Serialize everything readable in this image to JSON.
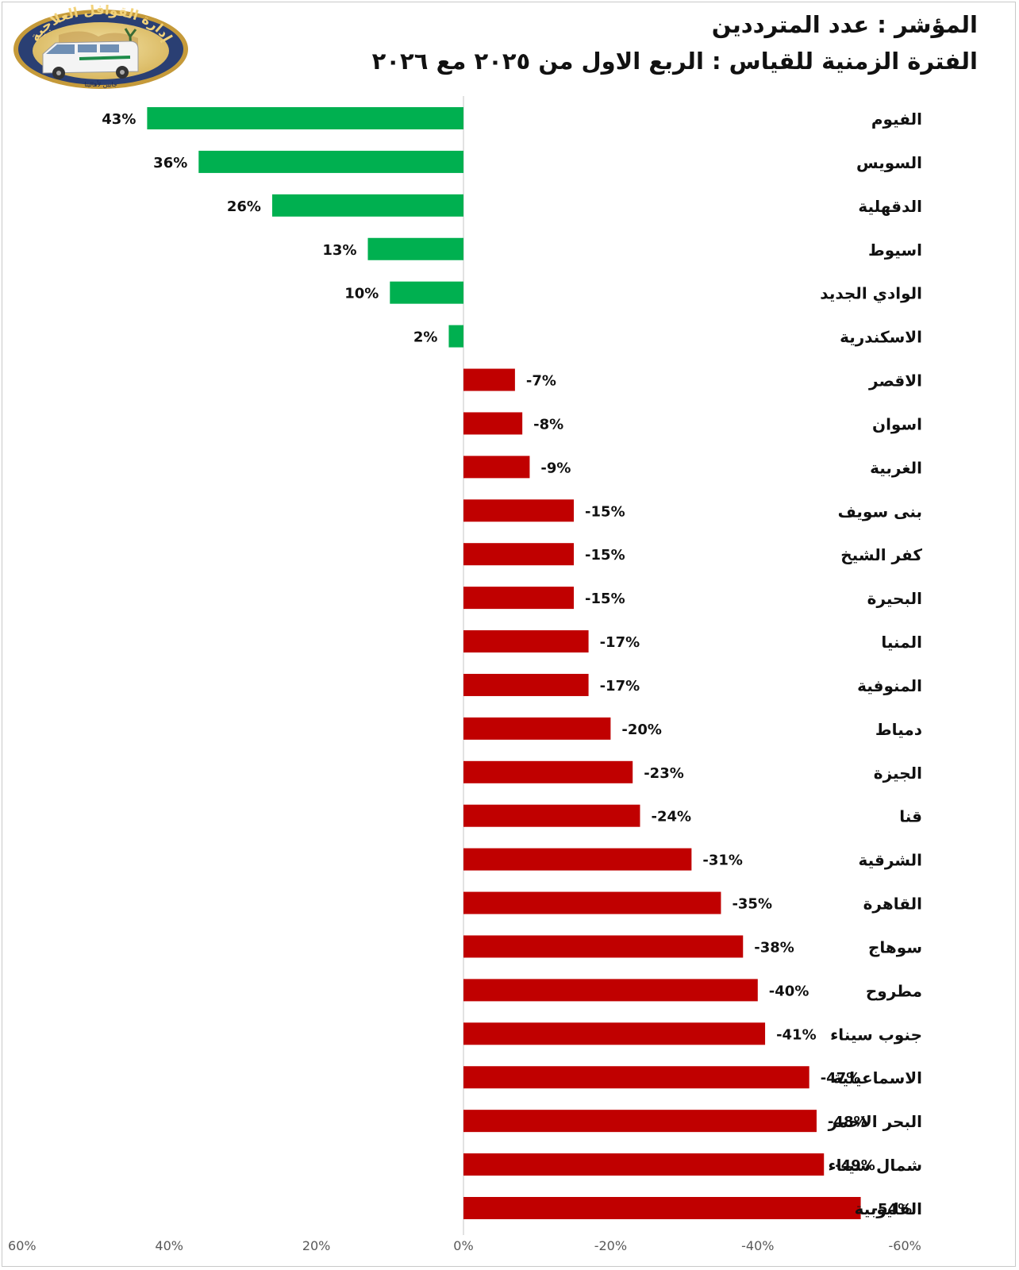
{
  "header": {
    "indicator_title": "المؤشر : عدد المترددين",
    "period_title": "الفترة الزمنية للقياس : الربع الاول من ٢٠٢٥ مع ٢٠٢٦"
  },
  "logo": {
    "arc_text": "إدارة القوافل العلاجية",
    "tagline": "جايين لأهالينا"
  },
  "colors": {
    "positive": "#00b050",
    "negative": "#c00000",
    "axis": "#d9d9d9",
    "text": "#111111",
    "tick": "#595959"
  },
  "chart_data": {
    "type": "bar",
    "orientation": "horizontal",
    "x_reversed": true,
    "xlim": [
      -60,
      60
    ],
    "xticks": [
      60,
      40,
      20,
      0,
      -20,
      -40,
      -60
    ],
    "xtick_labels": [
      "60%",
      "40%",
      "20%",
      "0%",
      "-20%",
      "-40%",
      "-60%"
    ],
    "categories": [
      "الفيوم",
      "السويس",
      "الدقهلية",
      "اسيوط",
      "الوادي الجديد",
      "الاسكندرية",
      "الاقصر",
      "اسوان",
      "الغربية",
      "بنى سويف",
      "كفر الشيخ",
      "البحيرة",
      "المنيا",
      "المنوفية",
      "دمياط",
      "الجيزة",
      "قنا",
      "الشرقية",
      "القاهرة",
      "سوهاج",
      "مطروح",
      "جنوب سيناء",
      "الاسماعيلية",
      "البحر الاحمر",
      "شمال سيناء",
      "القليوبية"
    ],
    "values": [
      43,
      36,
      26,
      13,
      10,
      2,
      -7,
      -8,
      -9,
      -15,
      -15,
      -15,
      -17,
      -17,
      -20,
      -23,
      -24,
      -31,
      -35,
      -38,
      -40,
      -41,
      -47,
      -48,
      -49,
      -54
    ],
    "data_labels": [
      "43%",
      "36%",
      "26%",
      "13%",
      "10%",
      "2%",
      "-7%",
      "-8%",
      "-9%",
      "-15%",
      "-15%",
      "-15%",
      "-17%",
      "-17%",
      "-20%",
      "-23%",
      "-24%",
      "-31%",
      "-35%",
      "-38%",
      "-40%",
      "-41%",
      "-47%",
      "-48%",
      "-49%",
      "-54%"
    ],
    "title": "",
    "xlabel": "",
    "ylabel": "",
    "grid": false,
    "legend": "none"
  }
}
